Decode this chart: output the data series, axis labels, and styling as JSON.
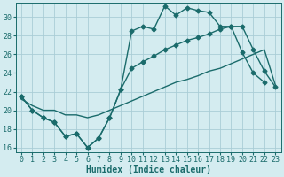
{
  "xlabel": "Humidex (Indice chaleur)",
  "bg_color": "#d4ecf0",
  "grid_color": "#aacdd6",
  "line_color": "#1a6b6b",
  "xlim": [
    -0.5,
    23.5
  ],
  "ylim": [
    15.5,
    31.5
  ],
  "xticks": [
    0,
    1,
    2,
    3,
    4,
    5,
    6,
    7,
    8,
    9,
    10,
    11,
    12,
    13,
    14,
    15,
    16,
    17,
    18,
    19,
    20,
    21,
    22,
    23
  ],
  "yticks": [
    16,
    18,
    20,
    22,
    24,
    26,
    28,
    30
  ],
  "line1_x": [
    0,
    1,
    2,
    3,
    4,
    5,
    6,
    7,
    8,
    9,
    10,
    11,
    12,
    13,
    14,
    15,
    16,
    17,
    18,
    19,
    20,
    21,
    22
  ],
  "line1_y": [
    21.5,
    20.0,
    19.2,
    18.7,
    17.2,
    17.5,
    16.0,
    17.0,
    19.2,
    22.2,
    28.5,
    29.0,
    28.7,
    31.2,
    30.2,
    31.0,
    30.7,
    30.5,
    29.0,
    29.0,
    26.2,
    24.0,
    23.0
  ],
  "line2_x": [
    0,
    1,
    2,
    3,
    4,
    5,
    6,
    7,
    8,
    9,
    10,
    11,
    12,
    13,
    14,
    15,
    16,
    17,
    18,
    19,
    20,
    21,
    22,
    23
  ],
  "line2_y": [
    21.5,
    20.0,
    19.2,
    18.7,
    17.2,
    17.5,
    16.0,
    17.0,
    19.2,
    22.2,
    24.5,
    25.2,
    25.8,
    26.5,
    27.0,
    27.5,
    27.8,
    28.2,
    28.7,
    29.0,
    29.0,
    26.5,
    24.2,
    22.5
  ],
  "line3_x": [
    0,
    1,
    2,
    3,
    4,
    5,
    6,
    7,
    8,
    9,
    10,
    11,
    12,
    13,
    14,
    15,
    16,
    17,
    18,
    19,
    20,
    21,
    22,
    23
  ],
  "line3_y": [
    21.2,
    20.5,
    20.0,
    20.0,
    19.5,
    19.5,
    19.2,
    19.5,
    20.0,
    20.5,
    21.0,
    21.5,
    22.0,
    22.5,
    23.0,
    23.3,
    23.7,
    24.2,
    24.5,
    25.0,
    25.5,
    26.0,
    26.5,
    22.7
  ],
  "marker_size": 2.5,
  "line_width": 1.0,
  "font_size_ticks": 6,
  "font_size_xlabel": 7
}
